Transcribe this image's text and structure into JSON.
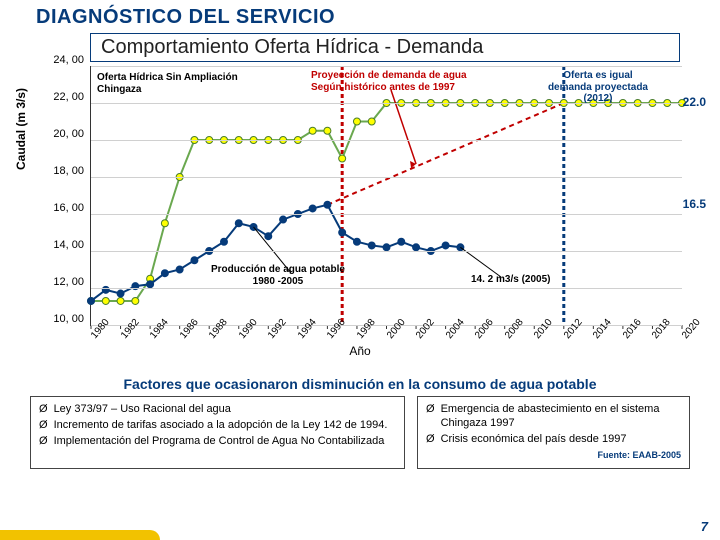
{
  "header": {
    "title": "DIAGNÓSTICO DEL SERVICIO",
    "subtitle": "Comportamiento  Oferta Hídrica - Demanda"
  },
  "chart": {
    "type": "line",
    "ylabel": "Caudal (m 3/s)",
    "xlabel": "Año",
    "ylim": [
      10,
      24
    ],
    "yticks": [
      10,
      12,
      14,
      16,
      18,
      20,
      22,
      24
    ],
    "ytick_labels": [
      "10, 00",
      "12, 00",
      "14, 00",
      "16, 00",
      "18, 00",
      "20, 00",
      "22, 00",
      "24, 00"
    ],
    "xlim": [
      1980,
      2020
    ],
    "x_years": [
      1980,
      1982,
      1984,
      1986,
      1988,
      1990,
      1992,
      1994,
      1996,
      1998,
      2000,
      2002,
      2004,
      2006,
      2008,
      2010,
      2012,
      2014,
      2016,
      2018,
      2020
    ],
    "grid_color": "#d0d0d0",
    "background_color": "#ffffff",
    "series": {
      "oferta": {
        "label": "Oferta Hídrica Sin Ampliación Chingaza",
        "color": "#6aa84f",
        "marker": "circle",
        "marker_fill": "#ffff00",
        "marker_stroke": "#4a7d2c",
        "line_width": 2,
        "points": [
          [
            1980,
            11.3
          ],
          [
            1981,
            11.3
          ],
          [
            1982,
            11.3
          ],
          [
            1983,
            11.3
          ],
          [
            1984,
            12.5
          ],
          [
            1985,
            15.5
          ],
          [
            1986,
            18.0
          ],
          [
            1987,
            20.0
          ],
          [
            1988,
            20.0
          ],
          [
            1989,
            20.0
          ],
          [
            1990,
            20.0
          ],
          [
            1991,
            20.0
          ],
          [
            1992,
            20.0
          ],
          [
            1993,
            20.0
          ],
          [
            1994,
            20.0
          ],
          [
            1995,
            20.5
          ],
          [
            1996,
            20.5
          ],
          [
            1997,
            19.0
          ],
          [
            1998,
            21.0
          ],
          [
            1999,
            21.0
          ],
          [
            2000,
            22.0
          ],
          [
            2001,
            22.0
          ],
          [
            2002,
            22.0
          ],
          [
            2003,
            22.0
          ],
          [
            2004,
            22.0
          ],
          [
            2005,
            22.0
          ],
          [
            2006,
            22.0
          ],
          [
            2007,
            22.0
          ],
          [
            2008,
            22.0
          ],
          [
            2009,
            22.0
          ],
          [
            2010,
            22.0
          ],
          [
            2011,
            22.0
          ],
          [
            2012,
            22.0
          ],
          [
            2013,
            22.0
          ],
          [
            2014,
            22.0
          ],
          [
            2015,
            22.0
          ],
          [
            2016,
            22.0
          ],
          [
            2017,
            22.0
          ],
          [
            2018,
            22.0
          ],
          [
            2019,
            22.0
          ],
          [
            2020,
            22.0
          ]
        ]
      },
      "produccion": {
        "label": "Producción de agua potable 1980 -2005",
        "color": "#063b7a",
        "marker": "circle",
        "marker_fill": "#063b7a",
        "line_width": 2,
        "points": [
          [
            1980,
            11.3
          ],
          [
            1981,
            11.9
          ],
          [
            1982,
            11.7
          ],
          [
            1983,
            12.1
          ],
          [
            1984,
            12.2
          ],
          [
            1985,
            12.8
          ],
          [
            1986,
            13.0
          ],
          [
            1987,
            13.5
          ],
          [
            1988,
            14.0
          ],
          [
            1989,
            14.5
          ],
          [
            1990,
            15.5
          ],
          [
            1991,
            15.3
          ],
          [
            1992,
            14.8
          ],
          [
            1993,
            15.7
          ],
          [
            1994,
            16.0
          ],
          [
            1995,
            16.3
          ],
          [
            1996,
            16.5
          ],
          [
            1997,
            15.0
          ],
          [
            1998,
            14.5
          ],
          [
            1999,
            14.3
          ],
          [
            2000,
            14.2
          ],
          [
            2001,
            14.5
          ],
          [
            2002,
            14.2
          ],
          [
            2003,
            14.0
          ],
          [
            2004,
            14.3
          ],
          [
            2005,
            14.2
          ]
        ]
      },
      "proyeccion": {
        "label": "Proyección de demanda de agua Según histórico antes de 1997",
        "color": "#c00000",
        "line_width": 2,
        "dash": "5 4",
        "points": [
          [
            1996,
            16.5
          ],
          [
            2012,
            22.0
          ]
        ]
      }
    },
    "verticals": [
      {
        "x": 1997,
        "color": "#c00000",
        "dash": "4 3",
        "width": 3
      },
      {
        "x": 2012,
        "color": "#063b7a",
        "dash": "4 3",
        "width": 3
      }
    ],
    "horiz_guides": [
      {
        "y": 22.0,
        "from_x": 2020,
        "label": "22.0"
      },
      {
        "y": 16.5,
        "from_x": 2020,
        "label": "16.5"
      }
    ],
    "annotations": {
      "oferta_label": "Oferta Hídrica Sin Ampliación Chingaza",
      "proy_label": "Proyección de demanda de agua\nSegún histórico antes de 1997",
      "oferta_igual": "Oferta es igual\ndemanda proyectada\n(2012)",
      "prod_label": "Producción de agua potable\n1980 -2005",
      "punto_2005": "14. 2 m3/s (2005)"
    }
  },
  "factors": {
    "title": "Factores que ocasionaron disminución en la consumo de agua potable",
    "left": [
      "Ley 373/97 – Uso Racional del agua",
      "Incremento de tarifas asociado a la adopción de la Ley 142 de 1994.",
      "Implementación del Programa de Control de Agua No Contabilizada"
    ],
    "right": [
      "Emergencia de abastecimiento en el sistema Chingaza 1997",
      "Crisis económica del país desde 1997"
    ],
    "source": "Fuente: EAAB-2005"
  },
  "page_number": "7"
}
